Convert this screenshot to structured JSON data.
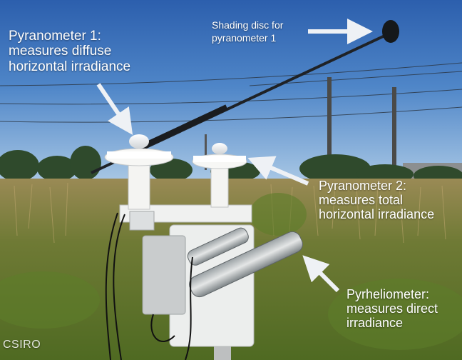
{
  "annotations": {
    "pyranometer1": "Pyranometer 1:\nmeasures diffuse\nhorizontal irradiance",
    "shading_disc": "Shading disc for\npyranometer 1",
    "pyranometer2": "Pyranometer 2:\nmeasures total\nhorizontal irradiance",
    "pyrheliometer": "Pyrheliometer:\nmeasures direct\nirradiance"
  },
  "credit": "CSIRO",
  "colors": {
    "sky_top": "#2f63b0",
    "sky_bottom": "#a9c8e6",
    "grass": "#7a8a3a",
    "instrument_white": "#f2f2f0",
    "arrow": "#e9edf2"
  }
}
